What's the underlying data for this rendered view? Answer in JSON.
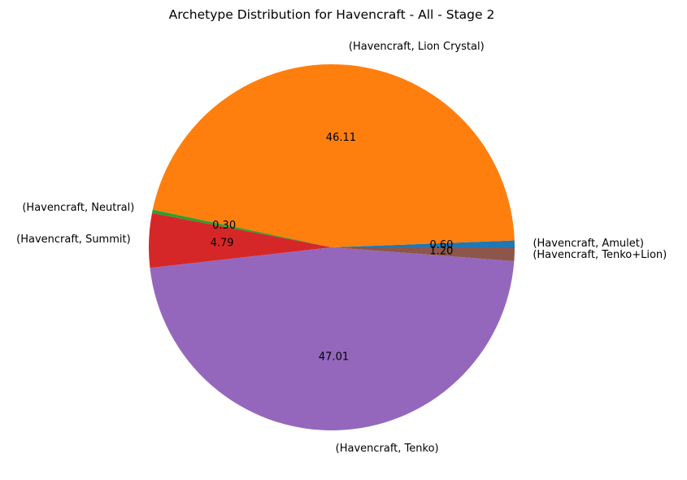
{
  "chart_data": {
    "type": "pie",
    "title": "Archetype Distribution for Havencraft - All - Stage 2",
    "slices": [
      {
        "label": "(Havencraft, Amulet)",
        "value": 0.6,
        "value_label": "0.60",
        "color": "#1f77b4"
      },
      {
        "label": "(Havencraft, Lion Crystal)",
        "value": 46.11,
        "value_label": "46.11",
        "color": "#ff7f0e"
      },
      {
        "label": "(Havencraft, Neutral)",
        "value": 0.3,
        "value_label": "0.30",
        "color": "#2ca02c"
      },
      {
        "label": "(Havencraft, Summit)",
        "value": 4.79,
        "value_label": "4.79",
        "color": "#d62728"
      },
      {
        "label": "(Havencraft, Tenko)",
        "value": 47.01,
        "value_label": "47.01",
        "color": "#9467bd"
      },
      {
        "label": "(Havencraft, Tenko+Lion)",
        "value": 1.2,
        "value_label": "1.20",
        "color": "#8c564b"
      }
    ],
    "start_angle_deg": 0,
    "direction": "counterclockwise"
  }
}
